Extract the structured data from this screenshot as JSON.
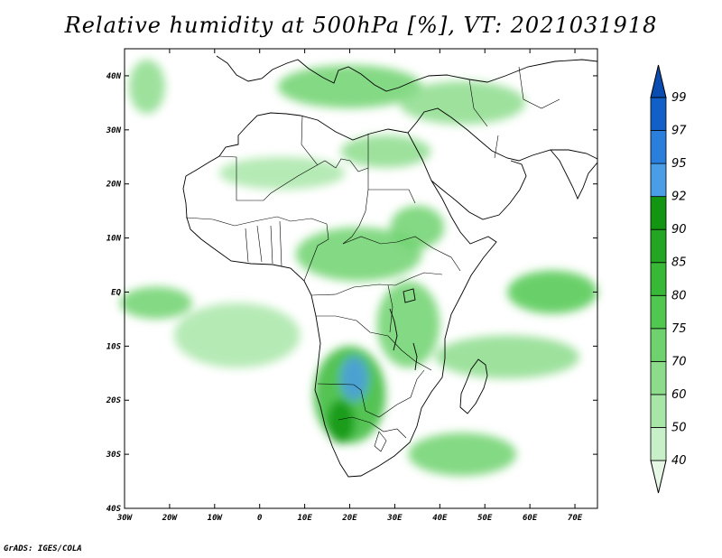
{
  "title": "Relative humidity at 500hPa [%], VT: 2021031918",
  "footer": "GrADS: IGES/COLA",
  "map": {
    "lon_range": [
      -30,
      75
    ],
    "lat_range": [
      -40,
      45
    ],
    "lon_ticks": [
      {
        "value": -30,
        "label": "30W"
      },
      {
        "value": -20,
        "label": "20W"
      },
      {
        "value": -10,
        "label": "10W"
      },
      {
        "value": 0,
        "label": "0"
      },
      {
        "value": 10,
        "label": "10E"
      },
      {
        "value": 20,
        "label": "20E"
      },
      {
        "value": 30,
        "label": "30E"
      },
      {
        "value": 40,
        "label": "40E"
      },
      {
        "value": 50,
        "label": "50E"
      },
      {
        "value": 60,
        "label": "60E"
      },
      {
        "value": 70,
        "label": "70E"
      }
    ],
    "lat_ticks": [
      {
        "value": 40,
        "label": "40N"
      },
      {
        "value": 30,
        "label": "30N"
      },
      {
        "value": 20,
        "label": "20N"
      },
      {
        "value": 10,
        "label": "10N"
      },
      {
        "value": 0,
        "label": "EQ"
      },
      {
        "value": -10,
        "label": "10S"
      },
      {
        "value": -20,
        "label": "20S"
      },
      {
        "value": -30,
        "label": "30S"
      },
      {
        "value": -40,
        "label": "40S"
      }
    ]
  },
  "colorbar": {
    "levels": [
      "40",
      "50",
      "60",
      "70",
      "75",
      "80",
      "85",
      "90",
      "92",
      "95",
      "97",
      "99"
    ],
    "colors": [
      "#e6f7e6",
      "#c8f0c8",
      "#a8e6a8",
      "#8cdc8c",
      "#6ed26e",
      "#50c850",
      "#37b837",
      "#23a623",
      "#129612",
      "#4a9ee8",
      "#2a7fdc",
      "#1060c8",
      "#0a4cb0"
    ]
  },
  "humid_regions": [
    {
      "lon": 20,
      "lat": -19,
      "rx": 8,
      "ry": 9,
      "level": 6
    },
    {
      "lon": 21,
      "lat": -16,
      "rx": 3,
      "ry": 4,
      "level": 9
    },
    {
      "lon": 18,
      "lat": -24,
      "rx": 3,
      "ry": 4,
      "level": 8
    },
    {
      "lon": 33,
      "lat": -6,
      "rx": 7,
      "ry": 8,
      "level": 4
    },
    {
      "lon": 22,
      "lat": 7,
      "rx": 14,
      "ry": 5,
      "level": 4
    },
    {
      "lon": 35,
      "lat": 12,
      "rx": 6,
      "ry": 4,
      "level": 4
    },
    {
      "lon": 20,
      "lat": 38,
      "rx": 16,
      "ry": 4,
      "level": 4
    },
    {
      "lon": 45,
      "lat": 35,
      "rx": 14,
      "ry": 4,
      "level": 3
    },
    {
      "lon": 65,
      "lat": 0,
      "rx": 10,
      "ry": 4,
      "level": 5
    },
    {
      "lon": 55,
      "lat": -12,
      "rx": 16,
      "ry": 4,
      "level": 3
    },
    {
      "lon": 45,
      "lat": -30,
      "rx": 12,
      "ry": 4,
      "level": 4
    },
    {
      "lon": -23,
      "lat": -2,
      "rx": 8,
      "ry": 3,
      "level": 4
    },
    {
      "lon": -5,
      "lat": -8,
      "rx": 14,
      "ry": 6,
      "level": 2
    },
    {
      "lon": 5,
      "lat": 22,
      "rx": 14,
      "ry": 3,
      "level": 2
    },
    {
      "lon": 28,
      "lat": 26,
      "rx": 10,
      "ry": 3,
      "level": 3
    },
    {
      "lon": -25,
      "lat": 38,
      "rx": 4,
      "ry": 5,
      "level": 3
    }
  ]
}
